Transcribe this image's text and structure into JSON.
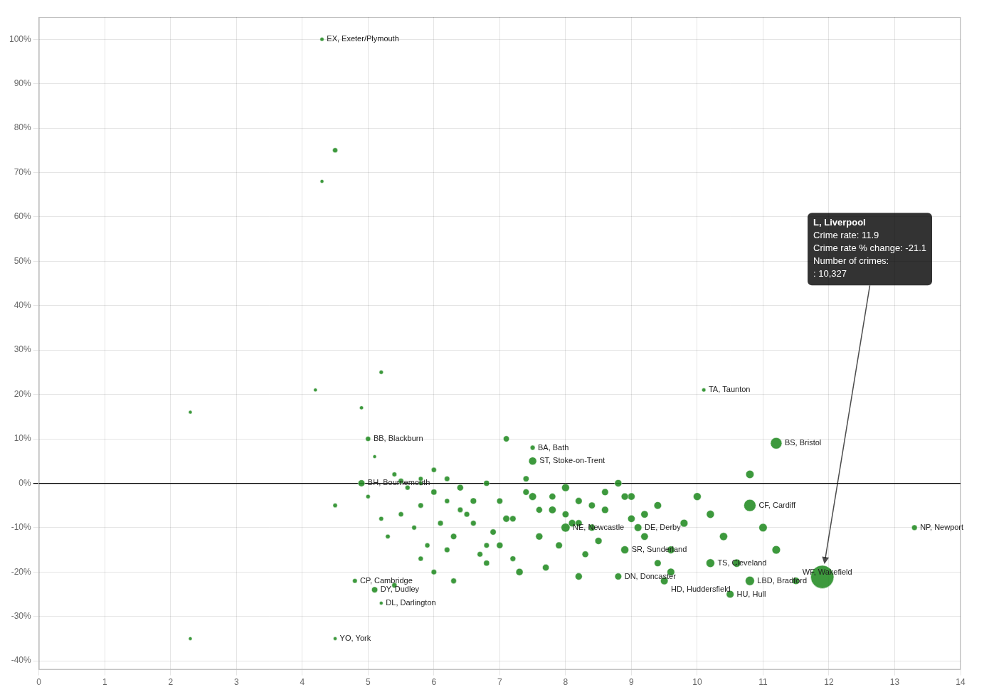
{
  "chart_data": {
    "type": "bubble",
    "x": [
      4.3,
      4.5,
      4.3,
      2.3,
      4.2,
      4.9,
      5.2,
      5.0,
      5.1,
      7.1,
      7.5,
      7.5,
      10.1,
      11.2,
      10.8,
      13.3,
      11.9,
      4.5,
      2.3,
      4.9,
      5.5,
      5.8,
      5.1,
      5.3,
      5.5,
      5.8,
      5.9,
      6.0,
      6.1,
      6.2,
      6.3,
      4.8,
      5.2,
      6.4,
      6.5,
      6.6,
      6.7,
      6.8,
      6.9,
      7.0,
      7.1,
      7.2,
      7.3,
      7.5,
      7.6,
      7.7,
      7.8,
      7.9,
      8.0,
      8.1,
      8.2,
      8.0,
      9.1,
      8.9,
      8.8,
      9.5,
      10.2,
      10.8,
      11.5,
      10.5,
      8.4,
      8.6,
      8.3,
      8.5,
      9.0,
      9.2,
      9.4,
      6.3,
      5.4,
      4.5,
      5.8,
      6.0,
      5.0,
      5.2,
      5.4,
      5.6,
      5.7,
      6.0,
      6.2,
      6.4,
      6.6,
      6.8,
      7.0,
      7.2,
      7.4,
      7.6,
      7.8,
      8.0,
      8.2,
      8.4,
      8.6,
      8.8,
      9.0,
      9.2,
      9.4,
      9.6,
      9.8,
      10.0,
      10.2,
      10.4,
      10.6,
      10.8,
      11.0,
      11.2,
      5.8,
      6.2,
      6.8,
      7.4,
      8.2,
      8.9,
      9.6
    ],
    "values": [
      100,
      75,
      68,
      16,
      21,
      17,
      25,
      10,
      6,
      10,
      8,
      5,
      21,
      9,
      -5,
      -10,
      -21.1,
      -35,
      -35,
      0,
      0.5,
      1,
      -24,
      -12,
      -7,
      -5,
      -14,
      -2,
      -9,
      -15,
      -12,
      -22,
      -27,
      -1,
      -7,
      -4,
      -16,
      -18,
      -11,
      -14,
      -8,
      -17,
      -20,
      -3,
      -12,
      -19,
      -6,
      -14,
      -1,
      -9,
      -21,
      -10,
      -10,
      -15,
      -21,
      -22,
      -18,
      -22,
      -22,
      -25,
      -5,
      -2,
      -16,
      -13,
      -3,
      -7,
      -18,
      -22,
      -23,
      -5,
      -17,
      -20,
      -3,
      -8,
      2,
      -1,
      -10,
      3,
      1,
      -6,
      -9,
      0,
      -4,
      -8,
      -2,
      -6,
      -3,
      -7,
      -4,
      -10,
      -6,
      0,
      -8,
      -12,
      -5,
      -15,
      -9,
      -3,
      -7,
      -12,
      -18,
      2,
      -10,
      -15,
      0,
      -4,
      -14,
      1,
      -9,
      -3,
      -20
    ],
    "sizes": [
      300,
      500,
      250,
      200,
      250,
      280,
      320,
      500,
      200,
      700,
      450,
      1200,
      300,
      2500,
      2800,
      600,
      10327,
      250,
      120,
      900,
      550,
      400,
      700,
      400,
      500,
      550,
      480,
      650,
      600,
      580,
      700,
      420,
      250,
      800,
      600,
      750,
      580,
      650,
      700,
      800,
      900,
      600,
      1000,
      1100,
      950,
      850,
      1050,
      900,
      1150,
      1000,
      950,
      1500,
      1100,
      1200,
      900,
      1100,
      1400,
      1600,
      1000,
      1100,
      850,
      900,
      800,
      950,
      1000,
      1050,
      900,
      600,
      520,
      380,
      480,
      560,
      350,
      400,
      420,
      460,
      440,
      500,
      540,
      560,
      600,
      640,
      700,
      720,
      760,
      800,
      830,
      870,
      900,
      930,
      960,
      990,
      1020,
      1050,
      1080,
      1110,
      1140,
      1170,
      1200,
      1230,
      1260,
      1290,
      1320,
      1350,
      350,
      480,
      560,
      680,
      880,
      970,
      1100
    ],
    "labels": [
      "EX, Exeter/Plymouth",
      null,
      null,
      null,
      null,
      null,
      null,
      "BB, Blackburn",
      null,
      null,
      "BA, Bath",
      "ST, Stoke-on-Trent",
      "TA, Taunton",
      "BS, Bristol",
      "CF, Cardiff",
      "NP, Newport",
      null,
      "YO, York",
      null,
      "BH, Bournemouth",
      null,
      null,
      "DY, Dudley",
      null,
      null,
      null,
      null,
      null,
      null,
      null,
      null,
      "CP, Cambridge",
      "DL, Darlington",
      null,
      null,
      null,
      null,
      null,
      null,
      null,
      null,
      null,
      null,
      null,
      null,
      null,
      null,
      null,
      null,
      null,
      null,
      "NE, Newcastle",
      "DE, Derby",
      "SR, Sunderland",
      "DN, Doncaster",
      "HD, Huddersfield",
      "TS, Cleveland",
      "LBD, Bradford",
      "WF, Wakefield",
      "HU, Hull",
      null,
      null,
      null,
      null,
      null,
      null,
      null,
      null,
      null,
      null,
      null,
      null,
      null,
      null,
      null,
      null,
      null,
      null,
      null,
      null,
      null,
      null,
      null,
      null,
      null,
      null,
      null,
      null,
      null,
      null,
      null,
      null,
      null,
      null,
      null,
      null,
      null,
      null,
      null,
      null,
      null,
      null,
      null,
      null,
      null,
      null,
      null,
      null,
      null,
      null,
      null
    ],
    "color": "#228B22",
    "xlim": [
      0,
      14
    ],
    "xticks": [
      0,
      1,
      2,
      3,
      4,
      5,
      6,
      7,
      8,
      9,
      10,
      11,
      12,
      13,
      14
    ],
    "ylim": [
      -42,
      105
    ],
    "yticks": [
      {
        "value": -40,
        "label": "-40%"
      },
      {
        "value": -30,
        "label": "-30%"
      },
      {
        "value": -20,
        "label": "-20%"
      },
      {
        "value": -10,
        "label": "-10%"
      },
      {
        "value": 0,
        "label": "0%"
      },
      {
        "value": 10,
        "label": "10%"
      },
      {
        "value": 20,
        "label": "20%"
      },
      {
        "value": 30,
        "label": "30%"
      },
      {
        "value": 40,
        "label": "40%"
      },
      {
        "value": 50,
        "label": "50%"
      },
      {
        "value": 60,
        "label": "60%"
      },
      {
        "value": 70,
        "label": "70%"
      },
      {
        "value": 80,
        "label": "80%"
      },
      {
        "value": 90,
        "label": "90%"
      },
      {
        "value": 100,
        "label": "100%"
      }
    ],
    "grid": true,
    "annotations": [
      {
        "text": [
          "L, Liverpool",
          "Crime rate: 11.9",
          "Crime rate % change: -21.1",
          "Number of crimes:",
          ": 10,327"
        ],
        "x": 11.9,
        "y": -21.1
      }
    ]
  }
}
